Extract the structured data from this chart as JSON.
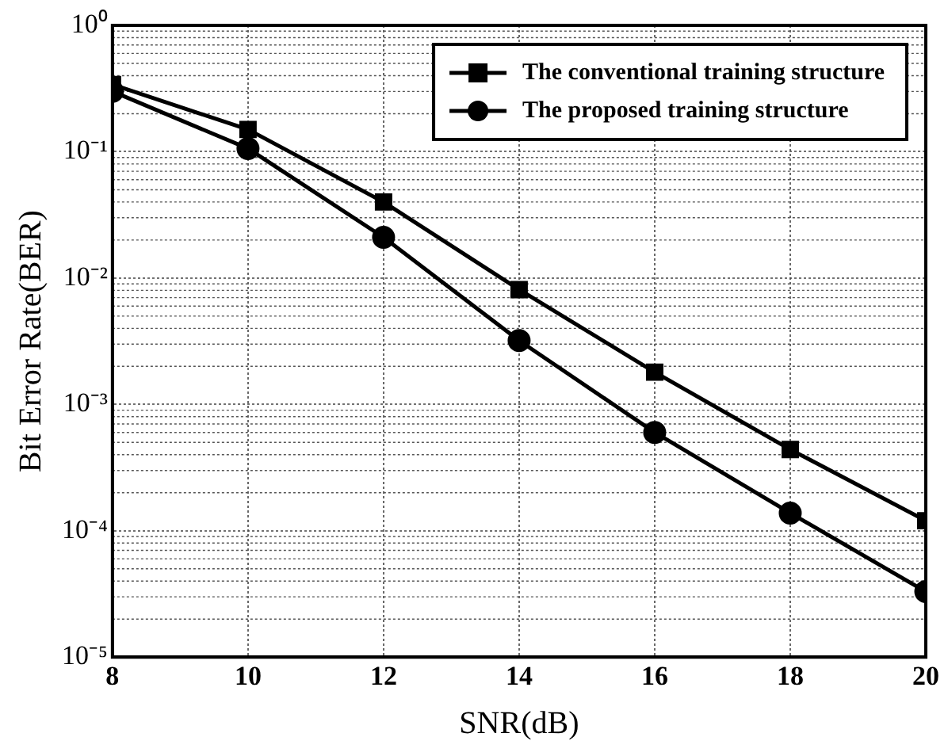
{
  "chart_data": {
    "type": "line",
    "xlabel": "SNR(dB)",
    "ylabel": "Bit Error Rate(BER)",
    "x": [
      8,
      10,
      12,
      14,
      16,
      18,
      20
    ],
    "series": [
      {
        "name": "The conventional training structure",
        "color": "#000000",
        "marker": "square",
        "values": [
          0.34,
          0.15,
          0.04,
          0.0081,
          0.0018,
          0.00044,
          0.00012
        ]
      },
      {
        "name": "The proposed training structure",
        "color": "#000000",
        "marker": "circle",
        "values": [
          0.3,
          0.106,
          0.021,
          0.0032,
          0.0006,
          0.000138,
          3.3e-05
        ]
      }
    ],
    "log": "y",
    "xlim": [
      8,
      20
    ],
    "xticks": [
      8,
      10,
      12,
      14,
      16,
      18,
      20
    ],
    "ylim": [
      1e-05,
      1
    ],
    "yticks": [
      {
        "value": 1,
        "label": "10⁰"
      },
      {
        "value": 0.1,
        "label": "10⁻¹"
      },
      {
        "value": 0.01,
        "label": "10⁻²"
      },
      {
        "value": 0.001,
        "label": "10⁻³"
      },
      {
        "value": 0.0001,
        "label": "10⁻⁴"
      },
      {
        "value": 1e-05,
        "label": "10⁻⁵"
      }
    ],
    "grid": true,
    "legend": "top right",
    "line_style": "solid"
  }
}
